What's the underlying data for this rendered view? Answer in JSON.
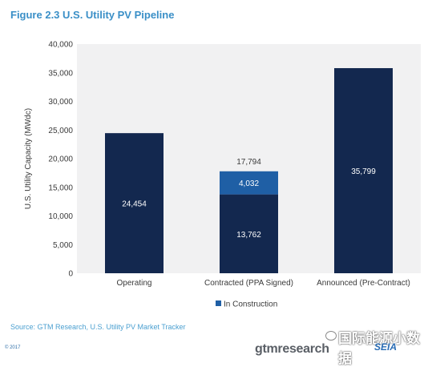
{
  "header": {
    "title": "Figure 2.3  U.S. Utility PV Pipeline"
  },
  "chart_data": {
    "type": "bar",
    "stacked": true,
    "categories": [
      "Operating",
      "Contracted (PPA Signed)",
      "Announced (Pre-Contract)"
    ],
    "series": [
      {
        "values": [
          24454,
          13762,
          35799
        ],
        "color": "#13284f",
        "value_labels": [
          "24,454",
          "13,762",
          "35,799"
        ]
      },
      {
        "name": "In Construction",
        "values": [
          0,
          4032,
          0
        ],
        "color": "#1f5fa5",
        "value_labels": [
          "",
          "4,032",
          ""
        ]
      }
    ],
    "totals": [
      null,
      17794,
      null
    ],
    "total_labels": [
      "",
      "17,794",
      ""
    ],
    "ylabel": "U.S. Utility Capacity (MWdc)",
    "xlabel": "",
    "ylim": [
      0,
      40000
    ],
    "y_ticks": [
      0,
      5000,
      10000,
      15000,
      20000,
      25000,
      30000,
      35000,
      40000
    ],
    "y_tick_labels": [
      "0",
      "5,000",
      "10,000",
      "15,000",
      "20,000",
      "25,000",
      "30,000",
      "35,000",
      "40,000"
    ],
    "grid": false,
    "legend_position": "bottom",
    "plot_background": "#f1f1f2"
  },
  "footer": {
    "source": "Source:  GTM Research, U.S. Utility PV Market Tracker",
    "copyright": "© 2017",
    "gtm_logo": "gtmresearch",
    "seia_logo": "SEIA",
    "watermark": "国际能源小数据"
  }
}
